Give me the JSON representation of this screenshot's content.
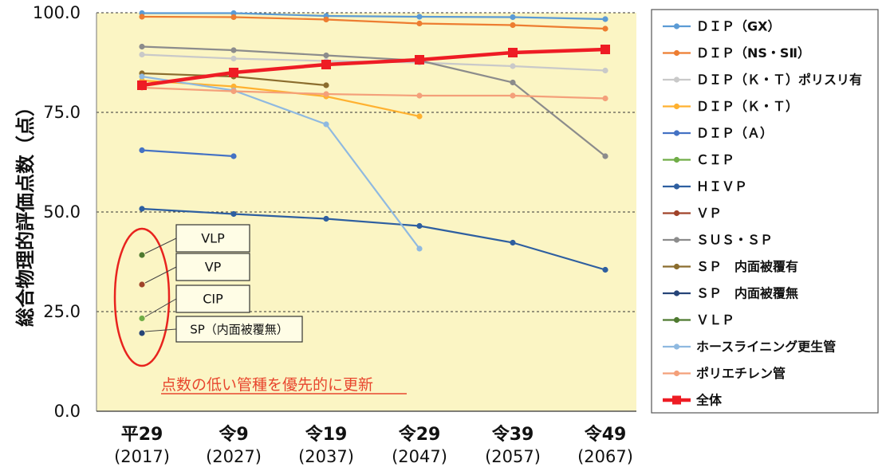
{
  "chart_data": {
    "type": "line",
    "title": "",
    "ylabel": "総合物理的評価点数（点）",
    "xlabel": "",
    "ylim": [
      0,
      100
    ],
    "yticks": [
      "0.0",
      "25.0",
      "50.0",
      "75.0",
      "100.0"
    ],
    "categories": [
      {
        "era": "平29",
        "year": "(2017)"
      },
      {
        "era": "令9",
        "year": "(2027)"
      },
      {
        "era": "令19",
        "year": "(2037)"
      },
      {
        "era": "令29",
        "year": "(2047)"
      },
      {
        "era": "令39",
        "year": "(2057)"
      },
      {
        "era": "令49",
        "year": "(2067)"
      }
    ],
    "background_color": "#FBF5C4",
    "grid": "horizontal dashed",
    "legend_position": "right",
    "series": [
      {
        "name": "ＤＩＰ（GX）",
        "color": "#5B9BD5",
        "values": [
          99.9,
          99.9,
          99.2,
          99.0,
          98.9,
          98.4
        ]
      },
      {
        "name": "ＤＩＰ（NS・SⅡ）",
        "color": "#ED7D31",
        "values": [
          99.0,
          98.9,
          98.3,
          97.3,
          96.9,
          96.0
        ]
      },
      {
        "name": "ＤＩＰ（Ｋ・Ｔ）ポリスリ有",
        "color": "#C9C9C9",
        "values": [
          89.5,
          88.5,
          87.9,
          87.5,
          86.6,
          85.5
        ]
      },
      {
        "name": "ＤＩＰ（Ｋ・Ｔ）",
        "color": "#FFB130",
        "values": [
          83.0,
          81.5,
          79.0,
          74.0,
          null,
          null
        ]
      },
      {
        "name": "ＤＩＰ（Ａ）",
        "color": "#4472C4",
        "values": [
          65.5,
          64.0,
          null,
          null,
          null,
          null
        ]
      },
      {
        "name": "ＣＩＰ",
        "color": "#70AD47",
        "values": [
          23.3,
          null,
          null,
          null,
          null,
          null
        ],
        "marker_only": true
      },
      {
        "name": "ＨＩＶＰ",
        "color": "#2E5FA0",
        "values": [
          50.8,
          49.5,
          48.3,
          46.5,
          42.3,
          35.5
        ]
      },
      {
        "name": "ＶＰ",
        "color": "#A0432A",
        "values": [
          31.8,
          null,
          null,
          null,
          null,
          null
        ],
        "marker_only": true
      },
      {
        "name": "ＳＵＳ・ＳＰ",
        "color": "#8C8C8C",
        "values": [
          91.5,
          90.6,
          89.3,
          88.0,
          82.5,
          64.0
        ]
      },
      {
        "name": "ＳＰ　内面被覆有",
        "color": "#8B6D2E",
        "values": [
          84.8,
          84.0,
          81.8,
          null,
          null,
          null
        ]
      },
      {
        "name": "ＳＰ　内面被覆無",
        "color": "#264478",
        "values": [
          19.6,
          null,
          null,
          null,
          null,
          null
        ],
        "marker_only": true
      },
      {
        "name": "ＶＬＰ",
        "color": "#4E7A30",
        "values": [
          39.2,
          null,
          null,
          null,
          null,
          null
        ],
        "marker_only": true
      },
      {
        "name": "ホースライニング更生管",
        "color": "#8FB9E0",
        "values": [
          84.0,
          80.5,
          72.0,
          40.8,
          null,
          null
        ]
      },
      {
        "name": "ポリエチレン管",
        "color": "#F4A07A",
        "values": [
          81.2,
          80.3,
          79.6,
          79.2,
          79.2,
          78.5
        ]
      },
      {
        "name": "全体",
        "color": "#EE1C24",
        "values": [
          81.8,
          85.0,
          87.0,
          88.2,
          90.0,
          90.8
        ],
        "bold": true
      }
    ],
    "annotations": {
      "callouts": [
        {
          "label": "VLP",
          "series": "ＶＬＰ"
        },
        {
          "label": "VP",
          "series": "ＶＰ"
        },
        {
          "label": "CIP",
          "series": "ＣＩＰ"
        },
        {
          "label": "SP（内面被覆無）",
          "series": "ＳＰ　内面被覆無"
        }
      ],
      "note": "点数の低い管種を優先的に更新",
      "note_color": "#E8462E",
      "ellipse_color": "#E8231E"
    }
  }
}
